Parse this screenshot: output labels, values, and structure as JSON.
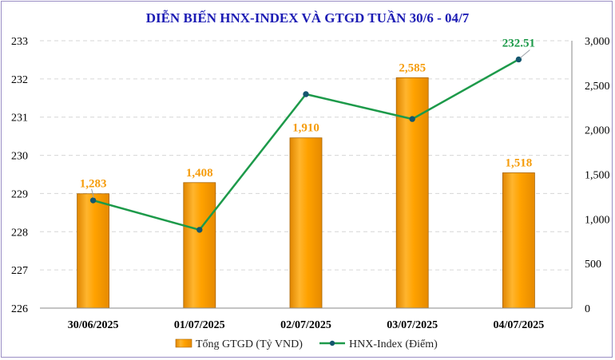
{
  "chart_data": {
    "type": "bar",
    "title": "DIỄN BIẾN HNX-INDEX VÀ GTGD TUẦN 30/6 - 04/7",
    "categories": [
      "30/06/2025",
      "01/07/2025",
      "02/07/2025",
      "03/07/2025",
      "04/07/2025"
    ],
    "series": [
      {
        "name": "Tổng GTGD (Tỷ VND)",
        "type": "bar",
        "axis": "right",
        "values": [
          1283,
          1408,
          1910,
          2585,
          1518
        ],
        "labels": [
          "1,283",
          "1,408",
          "1,910",
          "2,585",
          "1,518"
        ],
        "color": "#ffa500"
      },
      {
        "name": "HNX-Index (Điểm)",
        "type": "line",
        "axis": "left",
        "values": [
          228.82,
          228.05,
          231.6,
          230.95,
          232.51
        ],
        "labels": [
          "",
          "",
          "",
          "",
          "232.51"
        ],
        "color": "#1d9a4a"
      }
    ],
    "y_left": {
      "ylim": [
        226,
        233
      ],
      "ticks": [
        226,
        227,
        228,
        229,
        230,
        231,
        232,
        233
      ],
      "tick_labels": [
        "226",
        "227",
        "228",
        "229",
        "230",
        "231",
        "232",
        "233"
      ]
    },
    "y_right": {
      "ylim": [
        0,
        3000
      ],
      "ticks": [
        0,
        500,
        1000,
        1500,
        2000,
        2500,
        3000
      ],
      "tick_labels": [
        "0",
        "500",
        "1,000",
        "1,500",
        "2,000",
        "2,500",
        "3,000"
      ]
    },
    "grid": true,
    "legend_position": "bottom"
  }
}
